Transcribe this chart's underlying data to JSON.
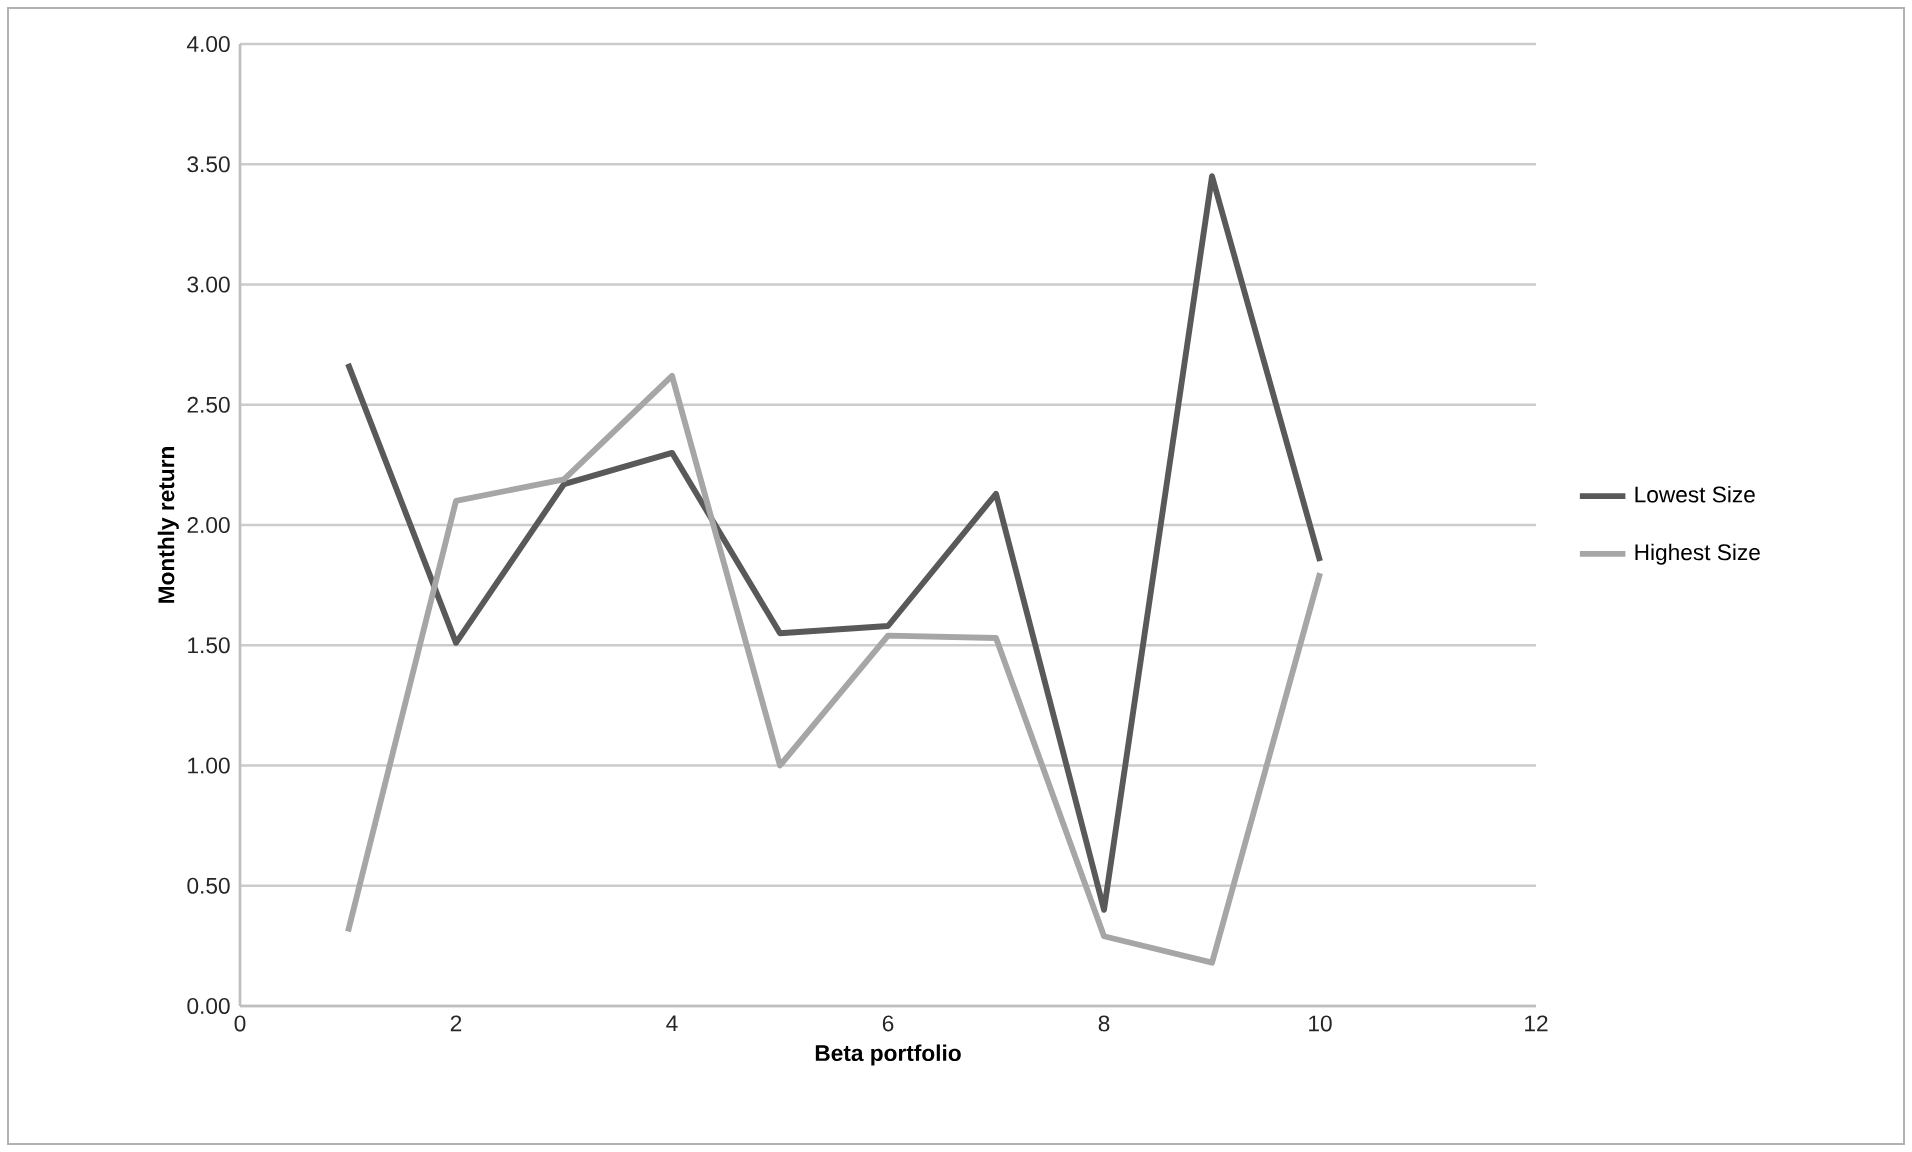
{
  "chart_data": {
    "type": "line",
    "xlabel": "Beta portfolio",
    "ylabel": "Monthly return",
    "x": [
      1,
      2,
      3,
      4,
      5,
      6,
      7,
      8,
      9,
      10
    ],
    "series": [
      {
        "name": "Lowest Size",
        "color": "#595959",
        "values": [
          2.67,
          1.51,
          2.17,
          2.3,
          1.55,
          1.58,
          2.13,
          0.4,
          3.45,
          1.85
        ]
      },
      {
        "name": "Highest Size",
        "color": "#a6a6a6",
        "values": [
          0.31,
          2.1,
          2.19,
          2.62,
          1.0,
          1.54,
          1.53,
          0.29,
          0.18,
          1.8
        ]
      }
    ],
    "xlim": [
      0,
      12
    ],
    "xticks": [
      0,
      2,
      4,
      6,
      8,
      10,
      12
    ],
    "ylim": [
      0,
      4
    ],
    "yticks": [
      {
        "value": 0,
        "label": "0.00"
      },
      {
        "value": 0.5,
        "label": "0.50"
      },
      {
        "value": 1,
        "label": "1.00"
      },
      {
        "value": 1.5,
        "label": "1.50"
      },
      {
        "value": 2,
        "label": "2.00"
      },
      {
        "value": 2.5,
        "label": "2.50"
      },
      {
        "value": 3,
        "label": "3.00"
      },
      {
        "value": 3.5,
        "label": "3.50"
      },
      {
        "value": 4,
        "label": "4.00"
      }
    ],
    "grid": "y",
    "legend": "right",
    "marker": "none",
    "line_style": "solid"
  }
}
